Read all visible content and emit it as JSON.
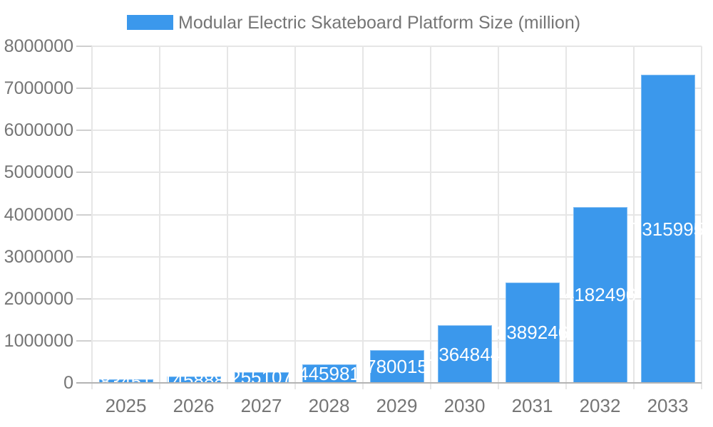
{
  "chart_data": {
    "type": "bar",
    "title": "Modular Electric Skateboard Platform Size (million)",
    "categories": [
      "2025",
      "2026",
      "2027",
      "2028",
      "2029",
      "2030",
      "2031",
      "2032",
      "2033"
    ],
    "values": [
      83451,
      145888,
      255107,
      445981,
      780015,
      1364844,
      2389246,
      4182496,
      7315995
    ],
    "xlabel": "",
    "ylabel": "",
    "ylim": [
      0,
      8000000
    ],
    "y_tick_step": 1000000,
    "y_tick_labels": [
      "0",
      "1000000",
      "2000000",
      "3000000",
      "4000000",
      "5000000",
      "6000000",
      "7000000",
      "8000000"
    ],
    "grid": true,
    "legend_position": "top",
    "colors": {
      "bar": "#3B98EC",
      "bar_value_text": "#FFFFFF",
      "axis_text": "#757575",
      "grid": "#E6E6E6",
      "tick_mark": "#CFCFCF",
      "baseline": "#B3B3B3",
      "background": "#FFFFFF"
    }
  }
}
